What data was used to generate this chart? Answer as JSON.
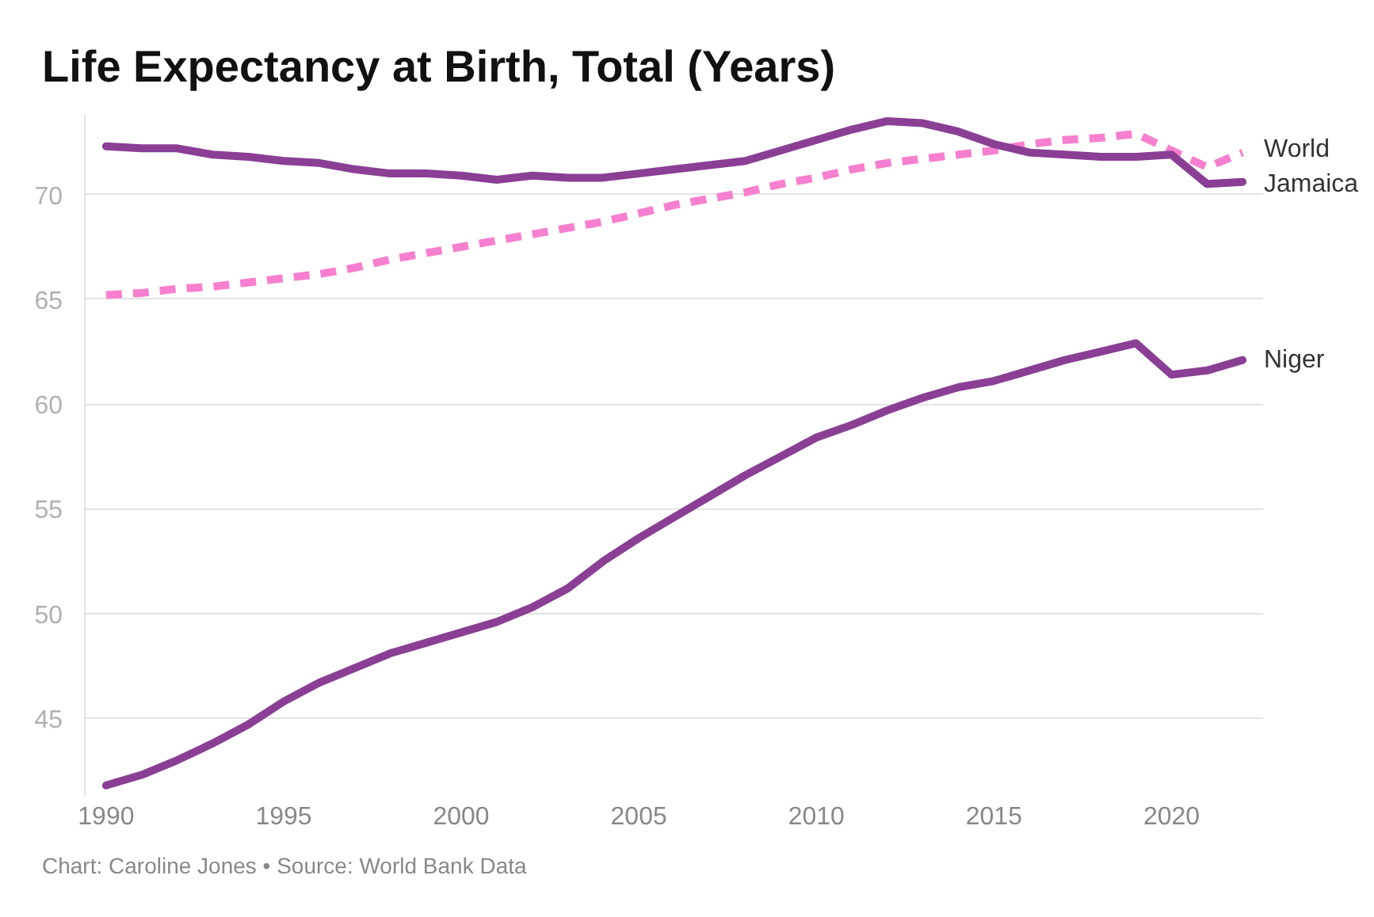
{
  "chart_data": {
    "type": "line",
    "title": "Life Expectancy at Birth, Total (Years)",
    "annotations": [
      "Chart: Caroline Jones • Source: World Bank Data"
    ],
    "x": [
      1990,
      1991,
      1992,
      1993,
      1994,
      1995,
      1996,
      1997,
      1998,
      1999,
      2000,
      2001,
      2002,
      2003,
      2004,
      2005,
      2006,
      2007,
      2008,
      2009,
      2010,
      2011,
      2012,
      2013,
      2014,
      2015,
      2016,
      2017,
      2018,
      2019,
      2020,
      2021,
      2022
    ],
    "series": [
      {
        "name": "World",
        "color": "#f77fcf",
        "line_style": "dashed",
        "values": [
          65.2,
          65.3,
          65.5,
          65.6,
          65.8,
          66.0,
          66.2,
          66.5,
          66.9,
          67.2,
          67.5,
          67.8,
          68.1,
          68.4,
          68.7,
          69.1,
          69.5,
          69.8,
          70.1,
          70.5,
          70.8,
          71.2,
          71.5,
          71.7,
          71.9,
          72.1,
          72.4,
          72.6,
          72.7,
          72.9,
          72.1,
          71.3,
          72.0
        ]
      },
      {
        "name": "Jamaica",
        "color": "#8a3f95",
        "line_style": "solid",
        "values": [
          72.3,
          72.2,
          72.2,
          71.9,
          71.8,
          71.6,
          71.5,
          71.2,
          71.0,
          71.0,
          70.9,
          70.7,
          70.9,
          70.8,
          70.8,
          71.0,
          71.2,
          71.4,
          71.6,
          72.1,
          72.6,
          73.1,
          73.5,
          73.4,
          73.0,
          72.4,
          72.0,
          71.9,
          71.8,
          71.8,
          71.9,
          70.5,
          70.6
        ]
      },
      {
        "name": "Niger",
        "color": "#8a3f95",
        "line_style": "solid",
        "values": [
          41.8,
          42.3,
          43.0,
          43.8,
          44.7,
          45.8,
          46.7,
          47.4,
          48.1,
          48.6,
          49.1,
          49.6,
          50.3,
          51.2,
          52.5,
          53.6,
          54.6,
          55.6,
          56.6,
          57.5,
          58.4,
          59.0,
          59.7,
          60.3,
          60.8,
          61.1,
          61.6,
          62.1,
          62.5,
          62.9,
          61.4,
          61.6,
          62.1
        ]
      }
    ],
    "xlim": [
      1989.4,
      2022.6
    ],
    "ylim": [
      41.3,
      73.8
    ],
    "xticks": [
      1990,
      1995,
      2000,
      2005,
      2010,
      2015,
      2020
    ],
    "yticks": [
      45,
      50,
      55,
      60,
      65,
      70
    ],
    "grid": "y"
  }
}
